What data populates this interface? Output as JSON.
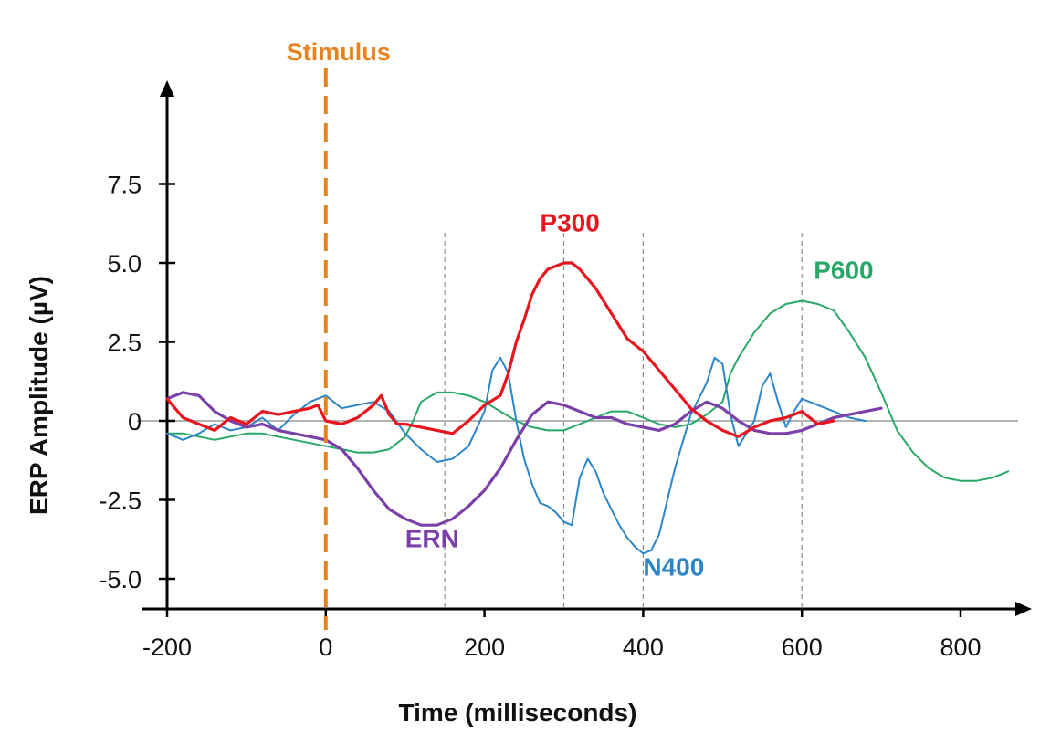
{
  "chart_data": {
    "type": "line",
    "xlabel": "Time (milliseconds)",
    "ylabel": "ERP Amplitude (µV)",
    "xlim": [
      -200,
      870
    ],
    "ylim": [
      -6.0,
      10.5
    ],
    "x_ticks": [
      "-200",
      "0",
      "200",
      "400",
      "600",
      "800"
    ],
    "y_ticks": [
      "7.5",
      "5.0",
      "2.5",
      "0",
      "-2.5",
      "-5.0"
    ],
    "grid": false,
    "zero_line": 0,
    "stimulus": {
      "label": "Stimulus",
      "x": 0,
      "color": "#e8821e"
    },
    "reference_lines_x": [
      150,
      300,
      400,
      600
    ],
    "series": [
      {
        "name": "ERN",
        "color": "#7b3fa8",
        "x": [
          -200,
          -180,
          -160,
          -140,
          -120,
          -100,
          -80,
          -60,
          -40,
          -20,
          0,
          20,
          40,
          60,
          80,
          100,
          120,
          140,
          160,
          180,
          200,
          220,
          240,
          260,
          280,
          300,
          320,
          340,
          360,
          380,
          400,
          420,
          440,
          460,
          480,
          500,
          520,
          540,
          560,
          580,
          600,
          620,
          640,
          660,
          680,
          700
        ],
        "y": [
          0.7,
          0.9,
          0.8,
          0.3,
          0,
          -0.2,
          -0.1,
          -0.3,
          -0.4,
          -0.5,
          -0.6,
          -0.9,
          -1.5,
          -2.2,
          -2.8,
          -3.1,
          -3.3,
          -3.3,
          -3.1,
          -2.7,
          -2.2,
          -1.5,
          -0.6,
          0.2,
          0.6,
          0.5,
          0.3,
          0.1,
          0.1,
          -0.1,
          -0.2,
          -0.3,
          -0.1,
          0.3,
          0.6,
          0.4,
          0,
          -0.3,
          -0.4,
          -0.4,
          -0.3,
          -0.1,
          0.1,
          0.2,
          0.3,
          0.4
        ]
      },
      {
        "name": "P300",
        "color": "#e8141e",
        "x": [
          -200,
          -180,
          -160,
          -140,
          -120,
          -100,
          -80,
          -60,
          -40,
          -20,
          -10,
          0,
          20,
          40,
          60,
          70,
          80,
          90,
          100,
          120,
          140,
          160,
          180,
          200,
          220,
          230,
          240,
          250,
          260,
          270,
          280,
          300,
          310,
          320,
          340,
          360,
          380,
          400,
          420,
          440,
          460,
          480,
          500,
          520,
          540,
          560,
          580,
          600,
          620,
          640
        ],
        "y": [
          0.7,
          0.1,
          -0.1,
          -0.3,
          0.1,
          -0.1,
          0.3,
          0.2,
          0.3,
          0.4,
          0.5,
          0,
          -0.1,
          0.1,
          0.5,
          0.8,
          0.2,
          -0.1,
          -0.1,
          -0.2,
          -0.3,
          -0.4,
          0,
          0.5,
          0.8,
          1.5,
          2.5,
          3.2,
          4.0,
          4.5,
          4.8,
          5.0,
          5.0,
          4.8,
          4.2,
          3.4,
          2.6,
          2.2,
          1.6,
          1.0,
          0.4,
          0,
          -0.3,
          -0.5,
          -0.2,
          0,
          0.1,
          0.3,
          -0.1,
          0
        ]
      },
      {
        "name": "N400",
        "color": "#2b86c8",
        "x": [
          -200,
          -180,
          -160,
          -140,
          -120,
          -100,
          -80,
          -60,
          -40,
          -20,
          0,
          20,
          40,
          60,
          80,
          100,
          120,
          140,
          160,
          180,
          200,
          210,
          220,
          230,
          240,
          250,
          260,
          270,
          280,
          290,
          300,
          310,
          320,
          330,
          340,
          350,
          360,
          370,
          380,
          390,
          400,
          410,
          420,
          440,
          460,
          480,
          490,
          500,
          510,
          520,
          540,
          550,
          560,
          570,
          580,
          590,
          600,
          620,
          640,
          660,
          680
        ],
        "y": [
          -0.4,
          -0.6,
          -0.4,
          -0.1,
          -0.3,
          -0.2,
          0.1,
          -0.3,
          0.2,
          0.6,
          0.8,
          0.4,
          0.5,
          0.6,
          0.3,
          -0.4,
          -0.9,
          -1.3,
          -1.2,
          -0.8,
          0.3,
          1.6,
          2.0,
          1.5,
          0,
          -1.2,
          -2.0,
          -2.6,
          -2.7,
          -2.9,
          -3.2,
          -3.3,
          -1.8,
          -1.2,
          -1.6,
          -2.3,
          -2.8,
          -3.3,
          -3.7,
          -4.0,
          -4.2,
          -4.1,
          -3.6,
          -1.5,
          0.2,
          1.2,
          2.0,
          1.8,
          0.2,
          -0.8,
          0,
          1.1,
          1.5,
          0.6,
          -0.2,
          0.3,
          0.7,
          0.5,
          0.3,
          0.1,
          0
        ]
      },
      {
        "name": "P600",
        "color": "#27a866",
        "x": [
          -200,
          -180,
          -160,
          -140,
          -120,
          -100,
          -80,
          -60,
          -40,
          -20,
          0,
          20,
          40,
          60,
          80,
          100,
          110,
          120,
          140,
          160,
          180,
          200,
          220,
          240,
          260,
          280,
          300,
          320,
          340,
          360,
          380,
          400,
          420,
          440,
          460,
          480,
          500,
          510,
          520,
          540,
          560,
          580,
          600,
          620,
          640,
          660,
          680,
          700,
          720,
          740,
          760,
          780,
          800,
          820,
          840,
          860
        ],
        "y": [
          -0.4,
          -0.4,
          -0.5,
          -0.6,
          -0.5,
          -0.4,
          -0.4,
          -0.5,
          -0.6,
          -0.7,
          -0.8,
          -0.9,
          -1.0,
          -1.0,
          -0.9,
          -0.5,
          0,
          0.6,
          0.9,
          0.9,
          0.8,
          0.6,
          0.3,
          0,
          -0.2,
          -0.3,
          -0.3,
          -0.1,
          0.1,
          0.3,
          0.3,
          0.1,
          -0.1,
          -0.2,
          -0.1,
          0.2,
          0.6,
          1.5,
          2.0,
          2.8,
          3.4,
          3.7,
          3.8,
          3.7,
          3.5,
          2.8,
          2.0,
          0.9,
          -0.3,
          -1.0,
          -1.5,
          -1.8,
          -1.9,
          -1.9,
          -1.8,
          -1.6
        ]
      }
    ],
    "annotations": [
      {
        "label": "ERN",
        "x": 100,
        "y": -4.0,
        "color": "#7b3fa8"
      },
      {
        "label": "P300",
        "x": 270,
        "y": 6.0,
        "color": "#e8141e"
      },
      {
        "label": "N400",
        "x": 400,
        "y": -4.9,
        "color": "#2b86c8"
      },
      {
        "label": "P600",
        "x": 615,
        "y": 4.5,
        "color": "#27a866"
      }
    ]
  }
}
